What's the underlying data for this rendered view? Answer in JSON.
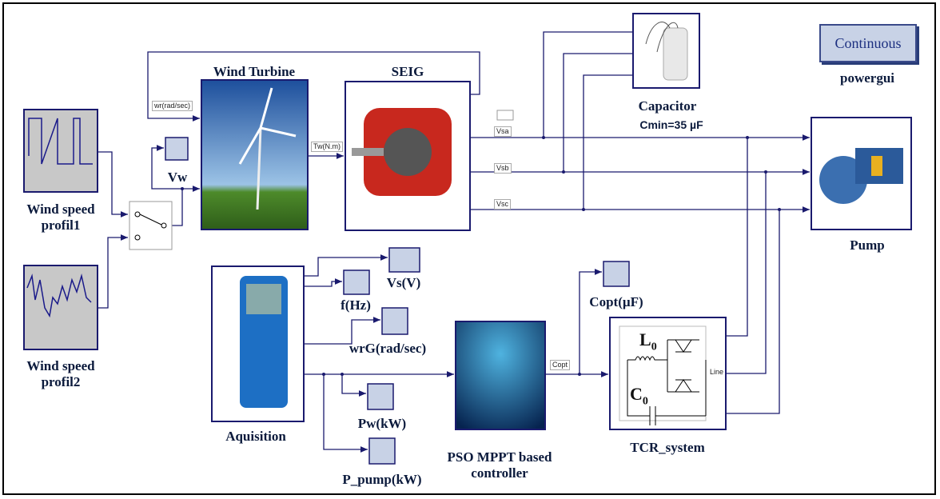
{
  "nodes": [
    {
      "id": "profil1",
      "label": "Wind speed profil1"
    },
    {
      "id": "profil2",
      "label": "Wind speed profil2"
    },
    {
      "id": "vw",
      "label": "Vw"
    },
    {
      "id": "turbine",
      "label": "Wind Turbine"
    },
    {
      "id": "seig",
      "label": "SEIG"
    },
    {
      "id": "capacitor",
      "label": "Capacitor",
      "note": "Cmin=35 µF"
    },
    {
      "id": "pump",
      "label": "Pump"
    },
    {
      "id": "aquisition",
      "label": "Aquisition"
    },
    {
      "id": "vs",
      "label": "Vs(V)"
    },
    {
      "id": "f",
      "label": "f(Hz)"
    },
    {
      "id": "wrg",
      "label": "wrG(rad/sec)"
    },
    {
      "id": "pw",
      "label": "Pw(kW)"
    },
    {
      "id": "ppump",
      "label": "P_pump(kW)"
    },
    {
      "id": "pso",
      "label": "PSO MPPT based controller"
    },
    {
      "id": "copt",
      "label": "Copt(µF)"
    },
    {
      "id": "tcr",
      "label": "TCR_system"
    }
  ],
  "powergui": {
    "button": "Continuous",
    "label": "powergui"
  },
  "ports": {
    "wr": "wr(rad/sec)",
    "tw": "Tw(N.m)",
    "vsa": "Vsa",
    "vsb": "Vsb",
    "vsc": "Vsc",
    "copt": "Copt",
    "line": "Line"
  },
  "tcr_symbols": {
    "inductor": {
      "symbol": "L",
      "sub": "0"
    },
    "capacitor": {
      "symbol": "C",
      "sub": "0"
    }
  }
}
